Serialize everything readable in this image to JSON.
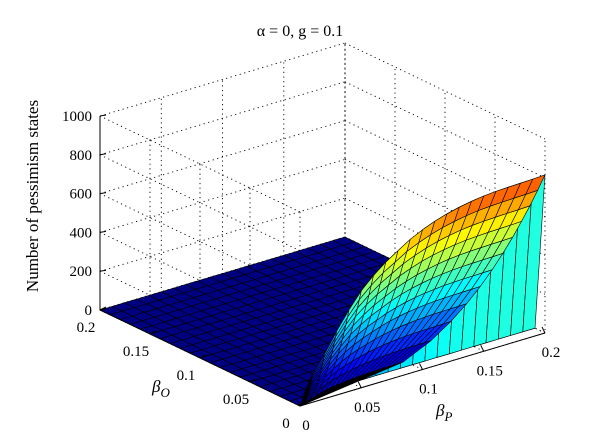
{
  "chart_data": {
    "type": "surface",
    "title": "α = 0, g = 0.1",
    "xlabel": "β_P",
    "ylabel": "β_O",
    "zlabel": "Number of pessimism states",
    "x_axis": {
      "symbol": "β",
      "subscript": "P",
      "ticks": [
        "0",
        "0.05",
        "0.1",
        "0.15",
        "0.2"
      ],
      "lim": [
        0,
        0.2
      ]
    },
    "y_axis": {
      "symbol": "β",
      "subscript": "O",
      "ticks": [
        "0",
        "0.05",
        "0.1",
        "0.15",
        "0.2"
      ],
      "lim": [
        0,
        0.2
      ]
    },
    "z_axis": {
      "label": "Number of pessimism states",
      "ticks": [
        "0",
        "200",
        "400",
        "600",
        "800",
        "1000"
      ],
      "lim": [
        0,
        1000
      ]
    },
    "grid": true,
    "colormap": "jet",
    "x_values": [
      0,
      0.01,
      0.02,
      0.03,
      0.04,
      0.05,
      0.06,
      0.07,
      0.08,
      0.09,
      0.1,
      0.11,
      0.12,
      0.13,
      0.14,
      0.15,
      0.16,
      0.17,
      0.18,
      0.19,
      0.2
    ],
    "y_values": [
      0,
      0.01,
      0.02,
      0.03,
      0.04,
      0.05,
      0.06,
      0.07,
      0.08,
      0.09,
      0.1,
      0.11,
      0.12,
      0.13,
      0.14,
      0.15,
      0.16,
      0.17,
      0.18,
      0.19,
      0.2
    ],
    "surface_profile": {
      "description_x": "value at beta_O = 0 across beta_P; zero for beta_O > 0",
      "z_at_y0": [
        0,
        140,
        230,
        330,
        420,
        500,
        560,
        610,
        650,
        690,
        720,
        745,
        765,
        780,
        792,
        800,
        805,
        808,
        810,
        812,
        815
      ],
      "z_max": 1000
    }
  }
}
